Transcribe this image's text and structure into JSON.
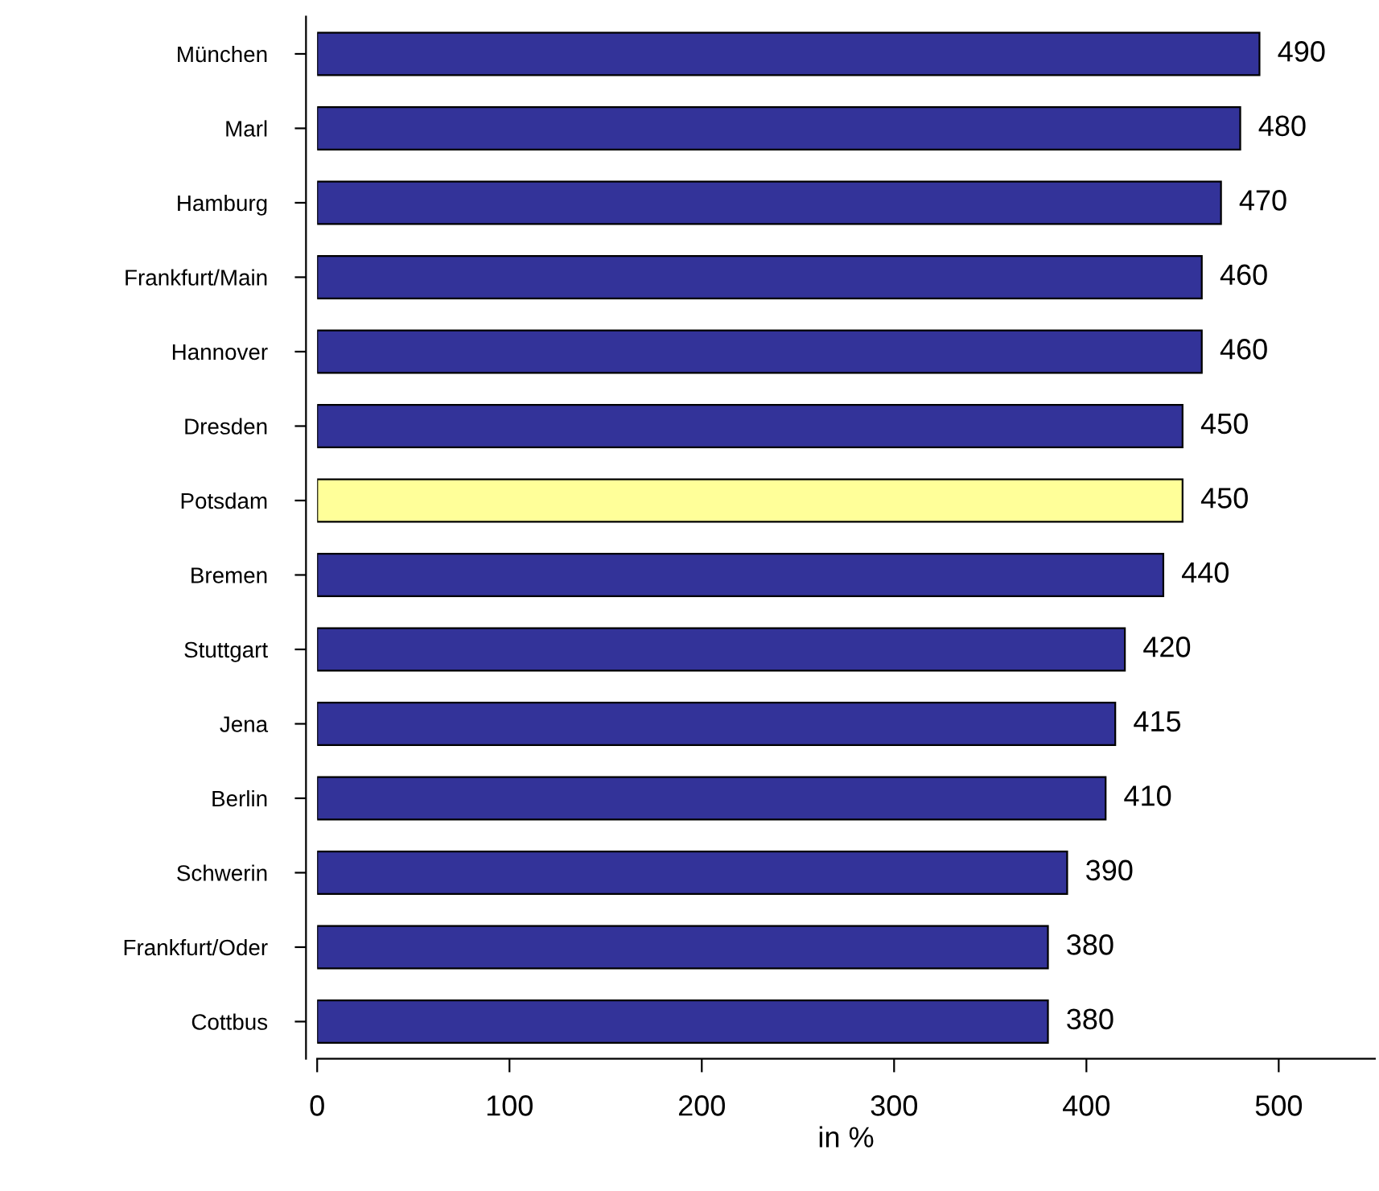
{
  "chart_data": {
    "type": "bar",
    "orientation": "horizontal",
    "xlabel": "in %",
    "categories": [
      "München",
      "Marl",
      "Hamburg",
      "Frankfurt/Main",
      "Hannover",
      "Dresden",
      "Potsdam",
      "Bremen",
      "Stuttgart",
      "Jena",
      "Berlin",
      "Schwerin",
      "Frankfurt/Oder",
      "Cottbus"
    ],
    "values": [
      490,
      480,
      470,
      460,
      460,
      450,
      450,
      440,
      420,
      415,
      410,
      390,
      380,
      380
    ],
    "colors": [
      "#333399",
      "#333399",
      "#333399",
      "#333399",
      "#333399",
      "#333399",
      "#ffff99",
      "#333399",
      "#333399",
      "#333399",
      "#333399",
      "#333399",
      "#333399",
      "#333399"
    ],
    "xlim": [
      0,
      550
    ],
    "xticks": [
      0,
      100,
      200,
      300,
      400,
      500
    ],
    "data_labels": true,
    "grid": false,
    "legend": false
  }
}
